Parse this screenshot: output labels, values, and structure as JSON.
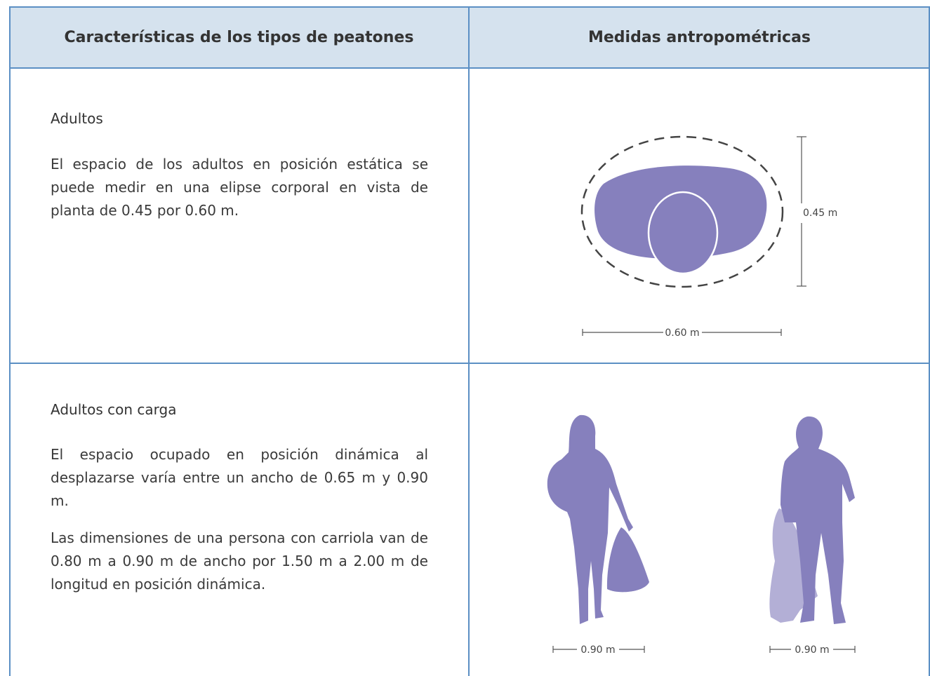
{
  "header": {
    "col1": "Características de los tipos de peatones",
    "col2": "Medidas antropométricas"
  },
  "rows": [
    {
      "title": "Adultos",
      "paragraphs": [
        "El espacio de los adultos en posición estática se puede medir en una elipse corporal en vista de planta de 0.45 por 0.60 m."
      ],
      "dimensions": [
        "0.45 m",
        "0.60 m"
      ]
    },
    {
      "title": "Adultos con carga",
      "paragraphs": [
        "El espacio ocupado en posición dinámica al desplazarse varía entre un ancho de 0.65 m y 0.90 m.",
        "Las dimensiones de una persona con carriola van de 0.80 m a 0.90 m de ancho por 1.50 m a 2.00 m de longitud en posición dinámica."
      ],
      "dimensions": [
        "0.90 m",
        "0.90 m"
      ]
    }
  ]
}
